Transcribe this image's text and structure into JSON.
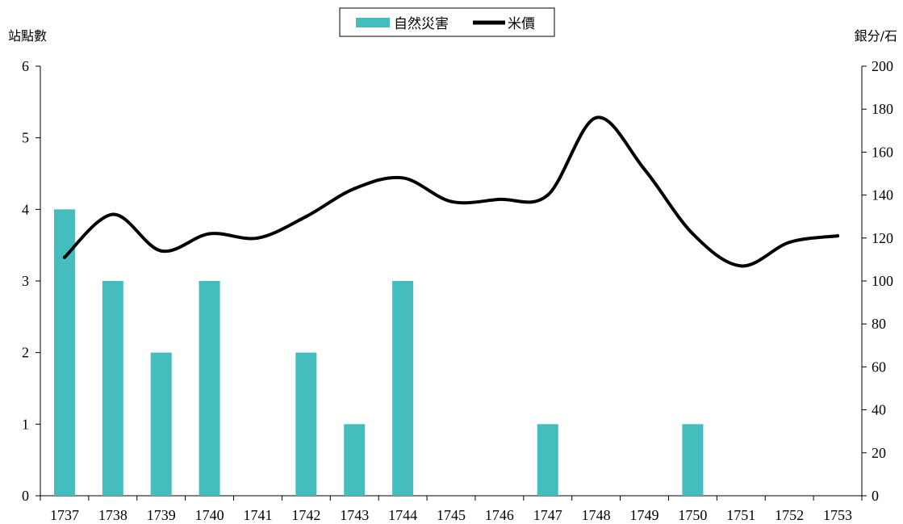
{
  "chart_data": {
    "type": "bar+line",
    "categories": [
      "1737",
      "1738",
      "1739",
      "1740",
      "1741",
      "1742",
      "1743",
      "1744",
      "1745",
      "1746",
      "1747",
      "1748",
      "1749",
      "1750",
      "1751",
      "1752",
      "1753"
    ],
    "series": [
      {
        "name": "自然災害",
        "type": "bar",
        "axis": "left",
        "color": "#45BDBE",
        "values": [
          4,
          3,
          2,
          3,
          0,
          2,
          1,
          3,
          0,
          0,
          1,
          0,
          0,
          1,
          0,
          0,
          0
        ]
      },
      {
        "name": "米價",
        "type": "line",
        "axis": "right",
        "color": "#000000",
        "smooth": true,
        "values": [
          111,
          131,
          114,
          122,
          120,
          130,
          143,
          148,
          137,
          138,
          140,
          176,
          152,
          122,
          107,
          118,
          121
        ]
      }
    ],
    "y_left_label": "站點數",
    "y_right_label": "銀分/石",
    "y_left_ticks": [
      "0",
      "1",
      "2",
      "3",
      "4",
      "5",
      "6"
    ],
    "y_right_ticks": [
      "0",
      "20",
      "40",
      "60",
      "80",
      "100",
      "120",
      "140",
      "160",
      "180",
      "200"
    ],
    "y_left_lim": [
      0,
      6
    ],
    "y_right_lim": [
      0,
      200
    ],
    "legend_position": "top-center",
    "grid": false
  }
}
